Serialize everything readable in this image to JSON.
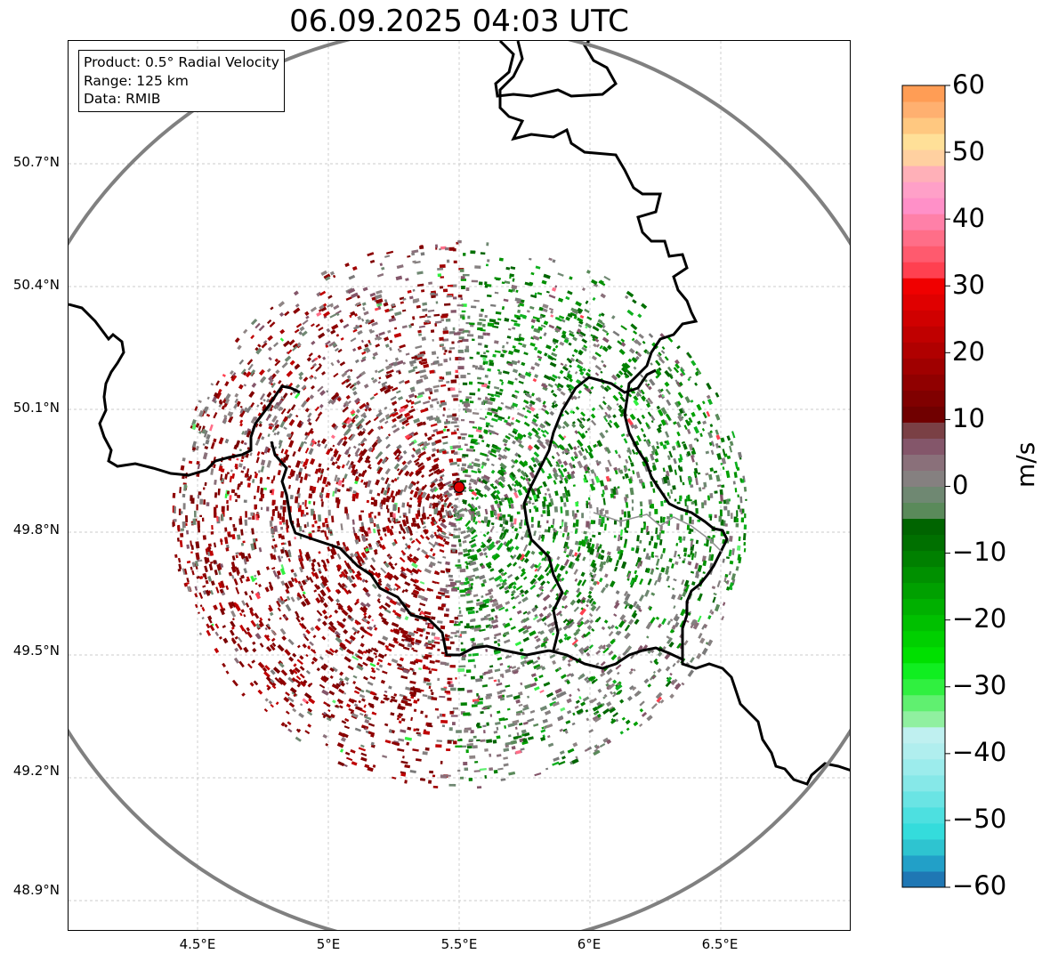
{
  "title": "06.09.2025 04:03 UTC",
  "info": {
    "product": "Product: 0.5° Radial Velocity",
    "range": "Range: 125 km",
    "data": "Data: RMIB"
  },
  "axes": {
    "lat_ticks": [
      "50.7°N",
      "50.4°N",
      "50.1°N",
      "49.8°N",
      "49.5°N",
      "49.2°N",
      "48.9°N"
    ],
    "lon_ticks": [
      "4.5°E",
      "5°E",
      "5.5°E",
      "6°E",
      "6.5°E"
    ]
  },
  "radar": {
    "name": "radar-site",
    "lat": 49.91,
    "lon": 5.5,
    "range_km": 125
  },
  "colorbar": {
    "unit": "m/s",
    "vmin": -60,
    "vmax": 60,
    "tick_labels": [
      "60",
      "50",
      "40",
      "30",
      "20",
      "10",
      "0",
      "−10",
      "−20",
      "−30",
      "−40",
      "−50",
      "−60"
    ],
    "colors": [
      "#1f77b4",
      "#22a0c8",
      "#2ec4d0",
      "#34dcdc",
      "#4de0e0",
      "#6ae4e4",
      "#86e8e8",
      "#9cecec",
      "#b0eeee",
      "#bff0f0",
      "#90f0a0",
      "#60f070",
      "#30f040",
      "#10ee20",
      "#00e000",
      "#00d000",
      "#00c000",
      "#00b000",
      "#00a000",
      "#009000",
      "#008000",
      "#007000",
      "#006400",
      "#5a8a5a",
      "#6f8872",
      "#858080",
      "#8a707a",
      "#84566a",
      "#7a4045",
      "#700000",
      "#800000",
      "#900000",
      "#a00000",
      "#b00000",
      "#c00000",
      "#d00000",
      "#e00000",
      "#f00000",
      "#ff4050",
      "#ff5a6e",
      "#ff6e88",
      "#ff80a8",
      "#ff90c8",
      "#ffa0c8",
      "#ffb0b8",
      "#ffd0a0",
      "#ffe098",
      "#ffc880",
      "#ffb070",
      "#ff9d55"
    ]
  },
  "colors": {
    "range_ring": "#808080",
    "border": "#000000",
    "grid": "#bbbbbb",
    "radar_marker": "#e00000"
  }
}
